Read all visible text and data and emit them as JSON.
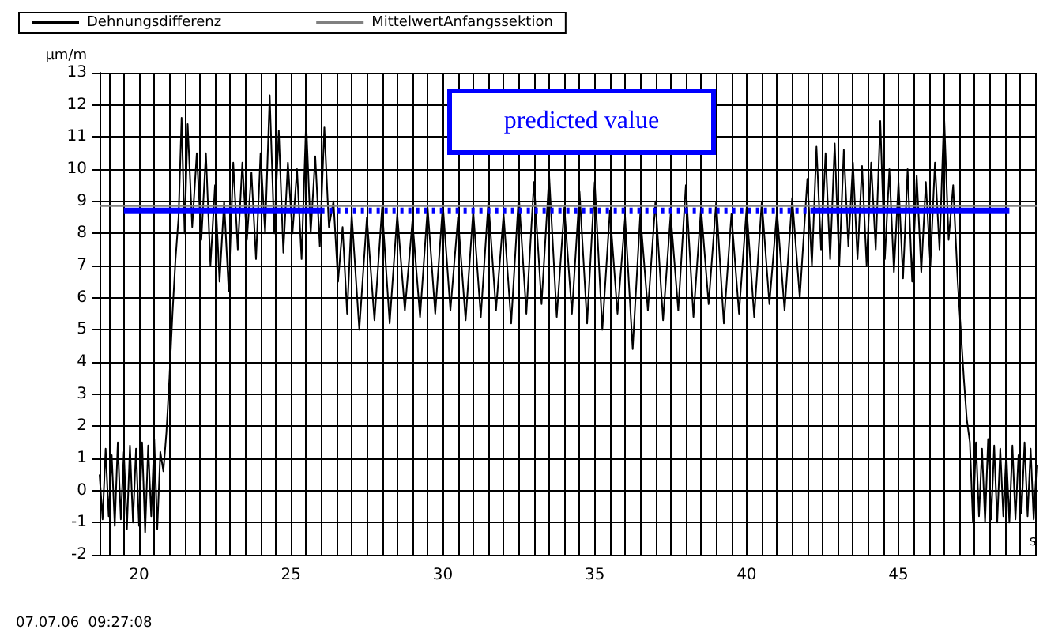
{
  "chart_data": {
    "type": "line",
    "xlabel": "s",
    "ylabel": "µm/m",
    "legend": "top",
    "grid": true,
    "marker": "none",
    "annotations": [
      "predicted value",
      "07.07.06  09:27:08"
    ],
    "xlim": [
      18.7,
      49.55
    ],
    "ylim": [
      -2,
      13
    ],
    "xticks": [
      {
        "value": 19,
        "label": null
      },
      {
        "value": 19.5,
        "label": null
      },
      20,
      {
        "value": 20.5,
        "label": null
      },
      {
        "value": 21,
        "label": null
      },
      {
        "value": 21.5,
        "label": null
      },
      {
        "value": 22,
        "label": null
      },
      {
        "value": 22.5,
        "label": null
      },
      {
        "value": 23,
        "label": null
      },
      {
        "value": 23.5,
        "label": null
      },
      {
        "value": 24,
        "label": null
      },
      {
        "value": 24.5,
        "label": null
      },
      25,
      {
        "value": 25.5,
        "label": null
      },
      {
        "value": 26,
        "label": null
      },
      {
        "value": 26.5,
        "label": null
      },
      {
        "value": 27,
        "label": null
      },
      {
        "value": 27.5,
        "label": null
      },
      {
        "value": 28,
        "label": null
      },
      {
        "value": 28.5,
        "label": null
      },
      {
        "value": 29,
        "label": null
      },
      {
        "value": 29.5,
        "label": null
      },
      30,
      {
        "value": 30.5,
        "label": null
      },
      {
        "value": 31,
        "label": null
      },
      {
        "value": 31.5,
        "label": null
      },
      {
        "value": 32,
        "label": null
      },
      {
        "value": 32.5,
        "label": null
      },
      {
        "value": 33,
        "label": null
      },
      {
        "value": 33.5,
        "label": null
      },
      {
        "value": 34,
        "label": null
      },
      {
        "value": 34.5,
        "label": null
      },
      35,
      {
        "value": 35.5,
        "label": null
      },
      {
        "value": 36,
        "label": null
      },
      {
        "value": 36.5,
        "label": null
      },
      {
        "value": 37,
        "label": null
      },
      {
        "value": 37.5,
        "label": null
      },
      {
        "value": 38,
        "label": null
      },
      {
        "value": 38.5,
        "label": null
      },
      {
        "value": 39,
        "label": null
      },
      {
        "value": 39.5,
        "label": null
      },
      40,
      {
        "value": 40.5,
        "label": null
      },
      {
        "value": 41,
        "label": null
      },
      {
        "value": 41.5,
        "label": null
      },
      {
        "value": 42,
        "label": null
      },
      {
        "value": 42.5,
        "label": null
      },
      {
        "value": 43,
        "label": null
      },
      {
        "value": 43.5,
        "label": null
      },
      {
        "value": 44,
        "label": null
      },
      {
        "value": 44.5,
        "label": null
      },
      45,
      {
        "value": 45.5,
        "label": null
      },
      {
        "value": 46,
        "label": null
      },
      {
        "value": 46.5,
        "label": null
      },
      {
        "value": 47,
        "label": null
      },
      {
        "value": 47.5,
        "label": null
      },
      {
        "value": 48,
        "label": null
      },
      {
        "value": 48.5,
        "label": null
      },
      {
        "value": 49,
        "label": null
      },
      {
        "value": 49.5,
        "label": null
      }
    ],
    "yticks": [
      -2,
      -1,
      0,
      1,
      2,
      3,
      4,
      5,
      6,
      7,
      8,
      9,
      10,
      11,
      12,
      13
    ],
    "series": [
      {
        "name": "Dehnungsdifferenz",
        "color": "#000000",
        "x": [
          18.7,
          18.8,
          18.9,
          19.0,
          19.1,
          19.2,
          19.3,
          19.4,
          19.5,
          19.6,
          19.7,
          19.8,
          19.9,
          20.0,
          20.1,
          20.2,
          20.3,
          20.4,
          20.5,
          20.6,
          20.7,
          20.8,
          20.9,
          21.0,
          21.1,
          21.2,
          21.3,
          21.4,
          21.5,
          21.6,
          21.75,
          21.9,
          22.05,
          22.2,
          22.35,
          22.5,
          22.65,
          22.8,
          22.95,
          23.1,
          23.25,
          23.4,
          23.55,
          23.7,
          23.85,
          24.0,
          24.15,
          24.3,
          24.45,
          24.6,
          24.75,
          24.9,
          25.05,
          25.2,
          25.35,
          25.5,
          25.65,
          25.8,
          25.95,
          26.1,
          26.25,
          26.4,
          26.55,
          26.7,
          26.85,
          27.0,
          27.25,
          27.5,
          27.75,
          28.0,
          28.25,
          28.5,
          28.75,
          29.0,
          29.25,
          29.5,
          29.75,
          30.0,
          30.25,
          30.5,
          30.75,
          31.0,
          31.25,
          31.5,
          31.75,
          32.0,
          32.25,
          32.5,
          32.75,
          33.0,
          33.25,
          33.5,
          33.75,
          34.0,
          34.25,
          34.5,
          34.75,
          35.0,
          35.25,
          35.5,
          35.75,
          36.0,
          36.25,
          36.5,
          36.75,
          37.0,
          37.25,
          37.5,
          37.75,
          38.0,
          38.25,
          38.5,
          38.75,
          39.0,
          39.25,
          39.5,
          39.75,
          40.0,
          40.25,
          40.5,
          40.75,
          41.0,
          41.25,
          41.5,
          41.75,
          42.0,
          42.15,
          42.3,
          42.45,
          42.6,
          42.75,
          42.9,
          43.05,
          43.2,
          43.35,
          43.5,
          43.65,
          43.8,
          43.95,
          44.1,
          44.25,
          44.4,
          44.55,
          44.7,
          44.85,
          45.0,
          45.15,
          45.3,
          45.45,
          45.6,
          45.75,
          45.9,
          46.05,
          46.2,
          46.35,
          46.5,
          46.65,
          46.8,
          46.95,
          47.05,
          47.15,
          47.25,
          47.35,
          47.45,
          47.55,
          47.65,
          47.75,
          47.85,
          47.95,
          48.05,
          48.15,
          48.25,
          48.35,
          48.45,
          48.55,
          48.65,
          48.75,
          48.85,
          48.95,
          49.05,
          49.15,
          49.25,
          49.35,
          49.45,
          49.55
        ],
        "values": [
          0.5,
          -0.9,
          1.3,
          -0.8,
          1.1,
          -1.1,
          1.5,
          -0.9,
          1.2,
          -1.2,
          1.4,
          -1.0,
          1.3,
          -1.1,
          1.5,
          -1.3,
          1.4,
          -0.8,
          1.6,
          -1.2,
          1.2,
          0.6,
          1.8,
          3.5,
          5.5,
          7.2,
          8.5,
          11.6,
          8.0,
          11.4,
          8.2,
          10.5,
          7.8,
          10.5,
          7.0,
          9.5,
          6.5,
          9.0,
          6.2,
          10.2,
          7.5,
          10.2,
          7.8,
          9.9,
          7.2,
          10.5,
          8.0,
          12.3,
          8.0,
          11.2,
          7.4,
          10.2,
          8.0,
          10.0,
          7.2,
          11.5,
          8.0,
          10.4,
          7.6,
          11.3,
          8.2,
          9.0,
          6.5,
          8.2,
          5.5,
          8.6,
          5.0,
          8.5,
          5.3,
          8.8,
          5.2,
          8.6,
          5.6,
          8.4,
          5.4,
          8.8,
          5.5,
          8.9,
          5.6,
          8.5,
          5.3,
          8.7,
          5.4,
          9.0,
          5.6,
          8.6,
          5.2,
          9.2,
          5.5,
          9.6,
          5.8,
          9.8,
          5.4,
          8.8,
          5.5,
          9.3,
          5.2,
          9.6,
          5.0,
          8.7,
          5.5,
          8.5,
          4.4,
          8.6,
          5.6,
          9.0,
          5.3,
          8.6,
          5.6,
          9.5,
          5.4,
          8.8,
          5.8,
          9.0,
          5.2,
          8.6,
          5.5,
          8.8,
          5.4,
          9.0,
          5.8,
          8.7,
          5.6,
          9.1,
          6.0,
          9.7,
          7.0,
          10.7,
          7.5,
          10.5,
          7.2,
          10.8,
          7.0,
          10.6,
          7.6,
          10.2,
          7.2,
          10.1,
          7.0,
          10.2,
          7.5,
          11.5,
          7.2,
          10.0,
          6.8,
          9.6,
          6.6,
          10.0,
          6.5,
          9.8,
          6.8,
          9.6,
          7.0,
          10.2,
          7.5,
          11.7,
          7.8,
          9.5,
          6.5,
          5.0,
          3.5,
          2.2,
          1.5,
          -1.0,
          1.5,
          -0.8,
          1.3,
          -1.0,
          1.6,
          -0.9,
          1.4,
          -1.0,
          1.3,
          -0.8,
          1.2,
          -1.0,
          1.4,
          -0.9,
          1.1,
          -0.7,
          1.5,
          -0.8,
          1.3,
          -0.9,
          0.8
        ]
      },
      {
        "name": "MittelwertAnfangssektion",
        "color": "#808080",
        "x": [
          18.7,
          49.55
        ],
        "values": [
          8.85,
          8.85
        ]
      },
      {
        "color": "#0000ff",
        "line_style": "solid",
        "x": [
          19.5,
          26.0
        ],
        "values": [
          8.7,
          8.7
        ]
      },
      {
        "color": "#0000ff",
        "line_style": "dotted",
        "x": [
          26.0,
          42.1
        ],
        "values": [
          8.7,
          8.7
        ]
      },
      {
        "color": "#0000ff",
        "line_style": "solid",
        "x": [
          42.1,
          48.65
        ],
        "values": [
          8.7,
          8.7
        ]
      }
    ]
  }
}
